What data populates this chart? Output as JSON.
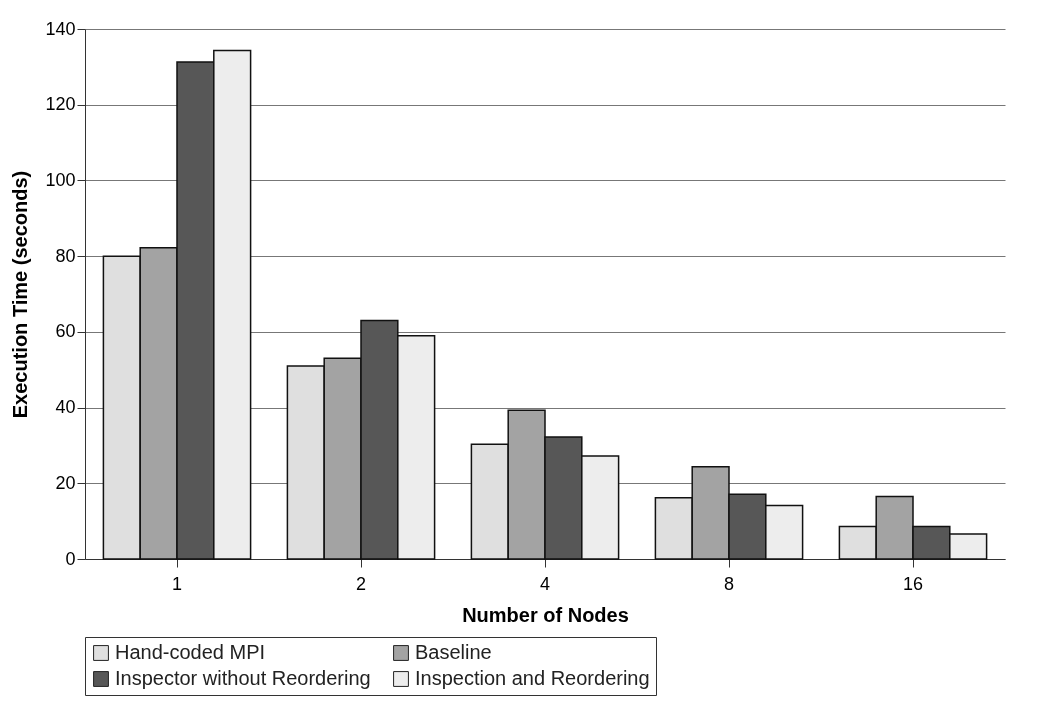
{
  "chart_data": {
    "type": "bar",
    "xlabel": "Number of Nodes",
    "ylabel": "Execution Time (seconds)",
    "categories": [
      "1",
      "2",
      "4",
      "8",
      "16"
    ],
    "series": [
      {
        "name": "Hand-coded MPI",
        "color": "#dfdfdf",
        "values": [
          80,
          51,
          30.3,
          16.2,
          8.6
        ]
      },
      {
        "name": "Baseline",
        "color": "#a3a3a3",
        "values": [
          82.2,
          53,
          39.3,
          24.4,
          16.5
        ]
      },
      {
        "name": "Inspector without Reordering",
        "color": "#575757",
        "values": [
          131.3,
          63,
          32.2,
          17.1,
          8.6
        ]
      },
      {
        "name": "Inspection and Reordering",
        "color": "#ededed",
        "values": [
          134.3,
          59,
          27.2,
          14.1,
          6.6
        ]
      }
    ],
    "ylim": [
      0,
      140
    ],
    "yticks": [
      0,
      20,
      40,
      60,
      80,
      100,
      120,
      140
    ],
    "grid": "y",
    "legend": "bottom"
  }
}
